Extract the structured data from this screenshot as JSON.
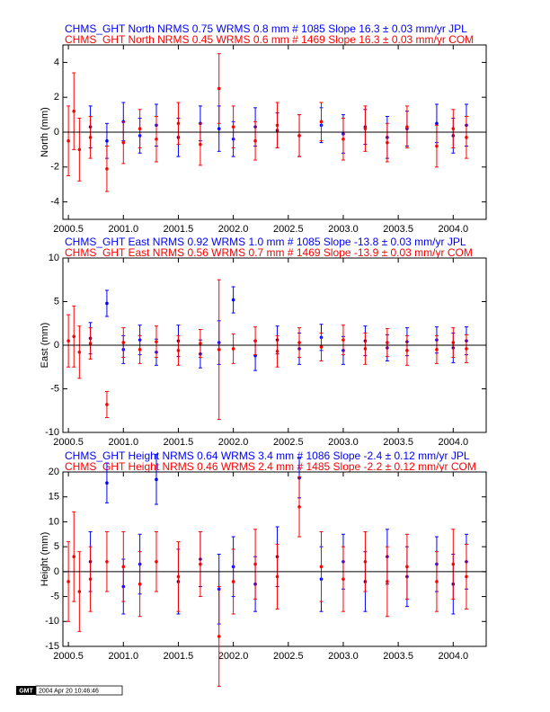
{
  "chart_data": [
    {
      "type": "errorbar",
      "y_label": "North (mm)",
      "zero_line": 0,
      "xlim": [
        2000.45,
        2004.3
      ],
      "ylim": [
        -5,
        5
      ],
      "yticks": [
        -4,
        -2,
        0,
        2,
        4
      ],
      "xticks": [
        2000.5,
        {
          "value": 2001,
          "label": "2001.0"
        },
        2001.5,
        {
          "value": 2002,
          "label": "2002.0"
        },
        2002.5,
        {
          "value": 2003,
          "label": "2003.0"
        },
        2003.5,
        {
          "value": 2004,
          "label": "2004.0"
        }
      ],
      "x": [
        2000.5,
        2000.55,
        2000.6,
        2000.7,
        2000.85,
        2001.0,
        2001.15,
        2001.3,
        2001.5,
        2001.7,
        2001.87,
        2002.0,
        2002.2,
        2002.4,
        2002.6,
        2002.8,
        2003.0,
        2003.2,
        2003.4,
        2003.58,
        2003.85,
        2004.0,
        2004.12
      ],
      "series": [
        {
          "name": "CHMS_GHT North NRMS 0.75 WRMS  0.8 mm # 1085 Slope   16.3 ±  0.03 mm/yr JPL",
          "color": "#0000ff",
          "values": [
            null,
            null,
            null,
            0.3,
            -0.5,
            0.6,
            -0.2,
            0.4,
            -0.3,
            0.5,
            0.2,
            -0.4,
            0.3,
            0.1,
            -0.2,
            0.4,
            -0.1,
            0.3,
            -0.3,
            0.2,
            0.5,
            -0.2,
            0.4
          ],
          "errors": [
            null,
            null,
            null,
            1.2,
            1.0,
            1.1,
            1.0,
            1.2,
            1.1,
            1.0,
            1.3,
            1.0,
            1.1,
            1.0,
            1.2,
            1.0,
            1.1,
            1.0,
            1.2,
            1.0,
            1.1,
            1.0,
            1.2
          ]
        },
        {
          "name": "CHMS_GHT North NRMS 0.45 WRMS  0.6 mm # 1469 Slope   16.3 ±  0.03 mm/yr COM",
          "color": "#ff0000",
          "values": [
            -0.5,
            1.2,
            -1.0,
            -0.3,
            -2.1,
            -0.6,
            0.2,
            -0.4,
            0.5,
            -0.7,
            2.5,
            0.3,
            -0.5,
            0.4,
            -0.2,
            0.6,
            -0.4,
            0.2,
            -0.6,
            0.3,
            -0.8,
            0.2,
            -0.3
          ],
          "errors": [
            2.0,
            2.2,
            1.8,
            1.2,
            1.3,
            1.2,
            1.1,
            1.3,
            1.2,
            1.2,
            2.0,
            1.2,
            1.1,
            1.3,
            1.2,
            1.1,
            1.2,
            1.3,
            1.1,
            1.2,
            1.2,
            1.1,
            1.2
          ]
        }
      ]
    },
    {
      "type": "errorbar",
      "y_label": "East (mm)",
      "zero_line": 0,
      "xlim": [
        2000.45,
        2004.3
      ],
      "ylim": [
        -10,
        10
      ],
      "yticks": [
        -10,
        -5,
        0,
        5,
        10
      ],
      "xticks": [
        2000.5,
        {
          "value": 2001,
          "label": "2001.0"
        },
        2001.5,
        {
          "value": 2002,
          "label": "2002.0"
        },
        2002.5,
        {
          "value": 2003,
          "label": "2003.0"
        },
        2003.5,
        {
          "value": 2004,
          "label": "2004.0"
        }
      ],
      "x": [
        2000.5,
        2000.55,
        2000.6,
        2000.7,
        2000.85,
        2001.0,
        2001.15,
        2001.3,
        2001.5,
        2001.7,
        2001.87,
        2002.0,
        2002.2,
        2002.4,
        2002.6,
        2002.8,
        2003.0,
        2003.2,
        2003.4,
        2003.58,
        2003.85,
        2004.0,
        2004.12
      ],
      "series": [
        {
          "name": "CHMS_GHT East NRMS 0.92 WRMS  1.0 mm # 1085 Slope  -13.8 ±  0.03 mm/yr JPL",
          "color": "#0000ff",
          "values": [
            null,
            null,
            null,
            0.8,
            4.8,
            -0.5,
            0.6,
            -0.8,
            0.5,
            -1.0,
            0.3,
            5.2,
            -1.2,
            0.6,
            -0.4,
            0.9,
            -0.6,
            0.5,
            -0.3,
            0.4,
            0.6,
            -0.3,
            0.5
          ],
          "errors": [
            null,
            null,
            null,
            1.8,
            1.5,
            1.6,
            1.7,
            1.5,
            1.8,
            1.6,
            2.5,
            1.5,
            1.7,
            1.6,
            1.8,
            1.5,
            1.6,
            1.7,
            1.5,
            1.6,
            1.5,
            1.7,
            1.6
          ]
        },
        {
          "name": "CHMS_GHT East NRMS 0.56 WRMS  0.7 mm # 1469 Slope  -13.9 ±  0.03 mm/yr COM",
          "color": "#ff0000",
          "values": [
            0.5,
            1.0,
            -0.8,
            0.2,
            -6.8,
            0.3,
            -0.5,
            0.4,
            -0.6,
            0.2,
            -0.5,
            -0.4,
            0.5,
            -0.7,
            0.3,
            -0.2,
            0.6,
            -0.4,
            0.3,
            -0.6,
            -0.5,
            0.3,
            -0.4
          ],
          "errors": [
            3.0,
            3.5,
            3.0,
            1.8,
            1.5,
            1.7,
            1.6,
            1.8,
            1.7,
            1.6,
            8.0,
            1.7,
            1.6,
            1.8,
            1.7,
            1.6,
            1.7,
            1.8,
            1.6,
            1.7,
            1.6,
            1.7,
            1.6
          ]
        }
      ]
    },
    {
      "type": "errorbar",
      "y_label": "Height (mm)",
      "zero_line": 0,
      "xlim": [
        2000.45,
        2004.3
      ],
      "ylim": [
        -15,
        20
      ],
      "yticks": [
        -15,
        -10,
        -5,
        0,
        5,
        10,
        15,
        20
      ],
      "xticks": [
        2000.5,
        {
          "value": 2001,
          "label": "2001.0"
        },
        2001.5,
        {
          "value": 2002,
          "label": "2002.0"
        },
        2002.5,
        {
          "value": 2003,
          "label": "2003.0"
        },
        2003.5,
        {
          "value": 2004,
          "label": "2004.0"
        }
      ],
      "x": [
        2000.5,
        2000.55,
        2000.6,
        2000.7,
        2000.85,
        2001.0,
        2001.15,
        2001.3,
        2001.5,
        2001.7,
        2001.87,
        2002.0,
        2002.2,
        2002.4,
        2002.6,
        2002.8,
        2003.0,
        2003.2,
        2003.4,
        2003.58,
        2003.85,
        2004.0,
        2004.12
      ],
      "series": [
        {
          "name": "CHMS_GHT Height NRMS 0.64 WRMS  3.4 mm # 1086 Slope   -2.4 ±  0.12 mm/yr JPL",
          "color": "#0000ff",
          "values": [
            null,
            null,
            null,
            2.0,
            17.8,
            -3.0,
            1.5,
            18.5,
            -2.0,
            2.5,
            -3.5,
            1.0,
            -2.5,
            3.0,
            18.8,
            -1.5,
            2.0,
            -2.0,
            3.0,
            -1.0,
            1.5,
            -2.5,
            2.0
          ],
          "errors": [
            null,
            null,
            null,
            6.0,
            4.0,
            5.5,
            6.0,
            5.0,
            6.5,
            5.5,
            7.0,
            6.0,
            5.5,
            6.0,
            4.0,
            6.5,
            5.5,
            6.0,
            5.5,
            6.0,
            5.5,
            6.0,
            5.5
          ]
        },
        {
          "name": "CHMS_GHT Height NRMS 0.46 WRMS  2.4 mm # 1485 Slope   -2.2 ±  0.12 mm/yr COM",
          "color": "#ff0000",
          "values": [
            -2.0,
            3.0,
            -4.0,
            -1.5,
            2.0,
            1.0,
            -2.5,
            2.0,
            -1.0,
            1.5,
            -13.0,
            -2.0,
            1.5,
            -1.0,
            13.0,
            1.0,
            -1.5,
            2.0,
            -2.0,
            1.0,
            -2.0,
            1.5,
            -1.0
          ],
          "errors": [
            8.0,
            9.0,
            8.0,
            6.5,
            6.0,
            7.0,
            6.5,
            6.0,
            7.0,
            6.5,
            10.0,
            6.5,
            7.0,
            6.5,
            6.0,
            7.0,
            6.5,
            6.0,
            7.0,
            6.5,
            6.0,
            7.0,
            6.5
          ]
        }
      ]
    }
  ],
  "footer": {
    "logo": "GMT",
    "timestamp": "2004 Apr 20 10:46:46"
  }
}
